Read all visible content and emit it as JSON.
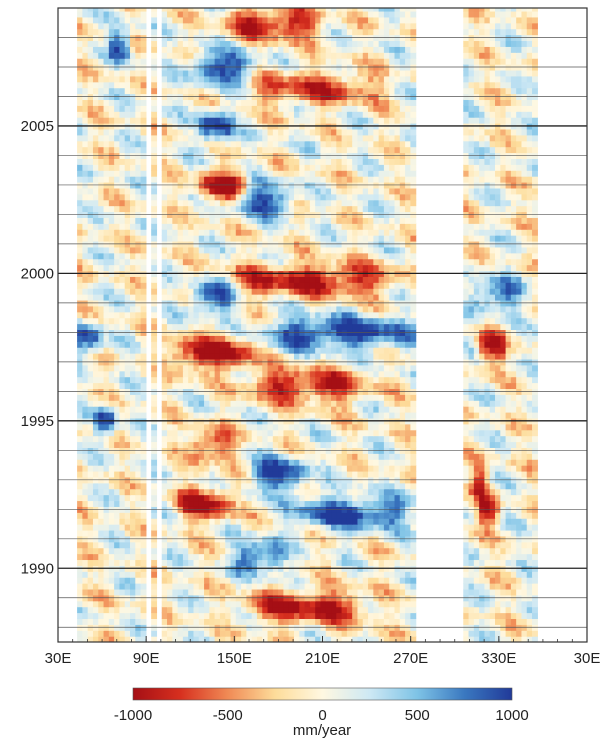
{
  "chart_data": {
    "type": "heatmap",
    "title": "",
    "xlabel": "",
    "ylabel": "",
    "x_ticks": [
      "30E",
      "90E",
      "150E",
      "210E",
      "270E",
      "330E",
      "30E"
    ],
    "x_range_deg_east": [
      30,
      390
    ],
    "y_ticks": [
      1990,
      1995,
      2000,
      2005
    ],
    "y_range_years": [
      1987.5,
      2009.0
    ],
    "data_gaps_deg_east": [
      [
        91,
        94
      ],
      [
        98,
        101
      ],
      [
        273,
        306
      ]
    ],
    "data_extent_deg_east": [
      43,
      356
    ],
    "horizontal_year_lines": true,
    "colorbar": {
      "orientation": "horizontal",
      "location": "bottom",
      "min": -1000,
      "max": 1000,
      "ticks": [
        "-1000",
        "-500",
        "0",
        "500",
        "1000"
      ],
      "unit": "mm/year",
      "colors": [
        "#a50f15",
        "#d7301f",
        "#f08a55",
        "#fddc9a",
        "#fff8e1",
        "#cde8f4",
        "#7ec3e6",
        "#3a78c0",
        "#213a99"
      ]
    },
    "features": [
      {
        "year": 2008.5,
        "lon_range": [
          145,
          210
        ],
        "value": -900
      },
      {
        "year": 2007.0,
        "lon_range": [
          120,
          165
        ],
        "value": 950
      },
      {
        "year": 2006.3,
        "lon_range": [
          160,
          250
        ],
        "value": -700
      },
      {
        "year": 2005.0,
        "lon_range": [
          125,
          150
        ],
        "value": 950
      },
      {
        "year": 2003.0,
        "lon_range": [
          125,
          160
        ],
        "value": -900
      },
      {
        "year": 2002.5,
        "lon_range": [
          150,
          190
        ],
        "value": 900
      },
      {
        "year": 1999.8,
        "lon_range": [
          150,
          260
        ],
        "value": -900
      },
      {
        "year": 1999.2,
        "lon_range": [
          120,
          150
        ],
        "value": 950
      },
      {
        "year": 1998.0,
        "lon_range": [
          170,
          272
        ],
        "value": 1000
      },
      {
        "year": 1997.3,
        "lon_range": [
          105,
          165
        ],
        "value": -1000
      },
      {
        "year": 1997.8,
        "lon_range": [
          40,
          60
        ],
        "value": 950
      },
      {
        "year": 1996.2,
        "lon_range": [
          160,
          240
        ],
        "value": -900
      },
      {
        "year": 1995.0,
        "lon_range": [
          55,
          70
        ],
        "value": 900
      },
      {
        "year": 1994.2,
        "lon_range": [
          120,
          150
        ],
        "value": -800
      },
      {
        "year": 1993.2,
        "lon_range": [
          160,
          200
        ],
        "value": 950
      },
      {
        "year": 1992.2,
        "lon_range": [
          110,
          150
        ],
        "value": -950
      },
      {
        "year": 1991.9,
        "lon_range": [
          190,
          270
        ],
        "value": 950
      },
      {
        "year": 1990.4,
        "lon_range": [
          150,
          185
        ],
        "value": 900
      },
      {
        "year": 1988.7,
        "lon_range": [
          160,
          240
        ],
        "value": -950
      },
      {
        "year": 1997.5,
        "lon_range": [
          315,
          335
        ],
        "value": -900
      },
      {
        "year": 1999.3,
        "lon_range": [
          310,
          345
        ],
        "value": 800
      },
      {
        "year": 1992.0,
        "lon_range": [
          315,
          330
        ],
        "value": -800
      },
      {
        "year": 1993.0,
        "lon_range": [
          312,
          322
        ],
        "value": -700
      },
      {
        "year": 2007.8,
        "lon_range": [
          65,
          80
        ],
        "value": 900
      }
    ]
  }
}
